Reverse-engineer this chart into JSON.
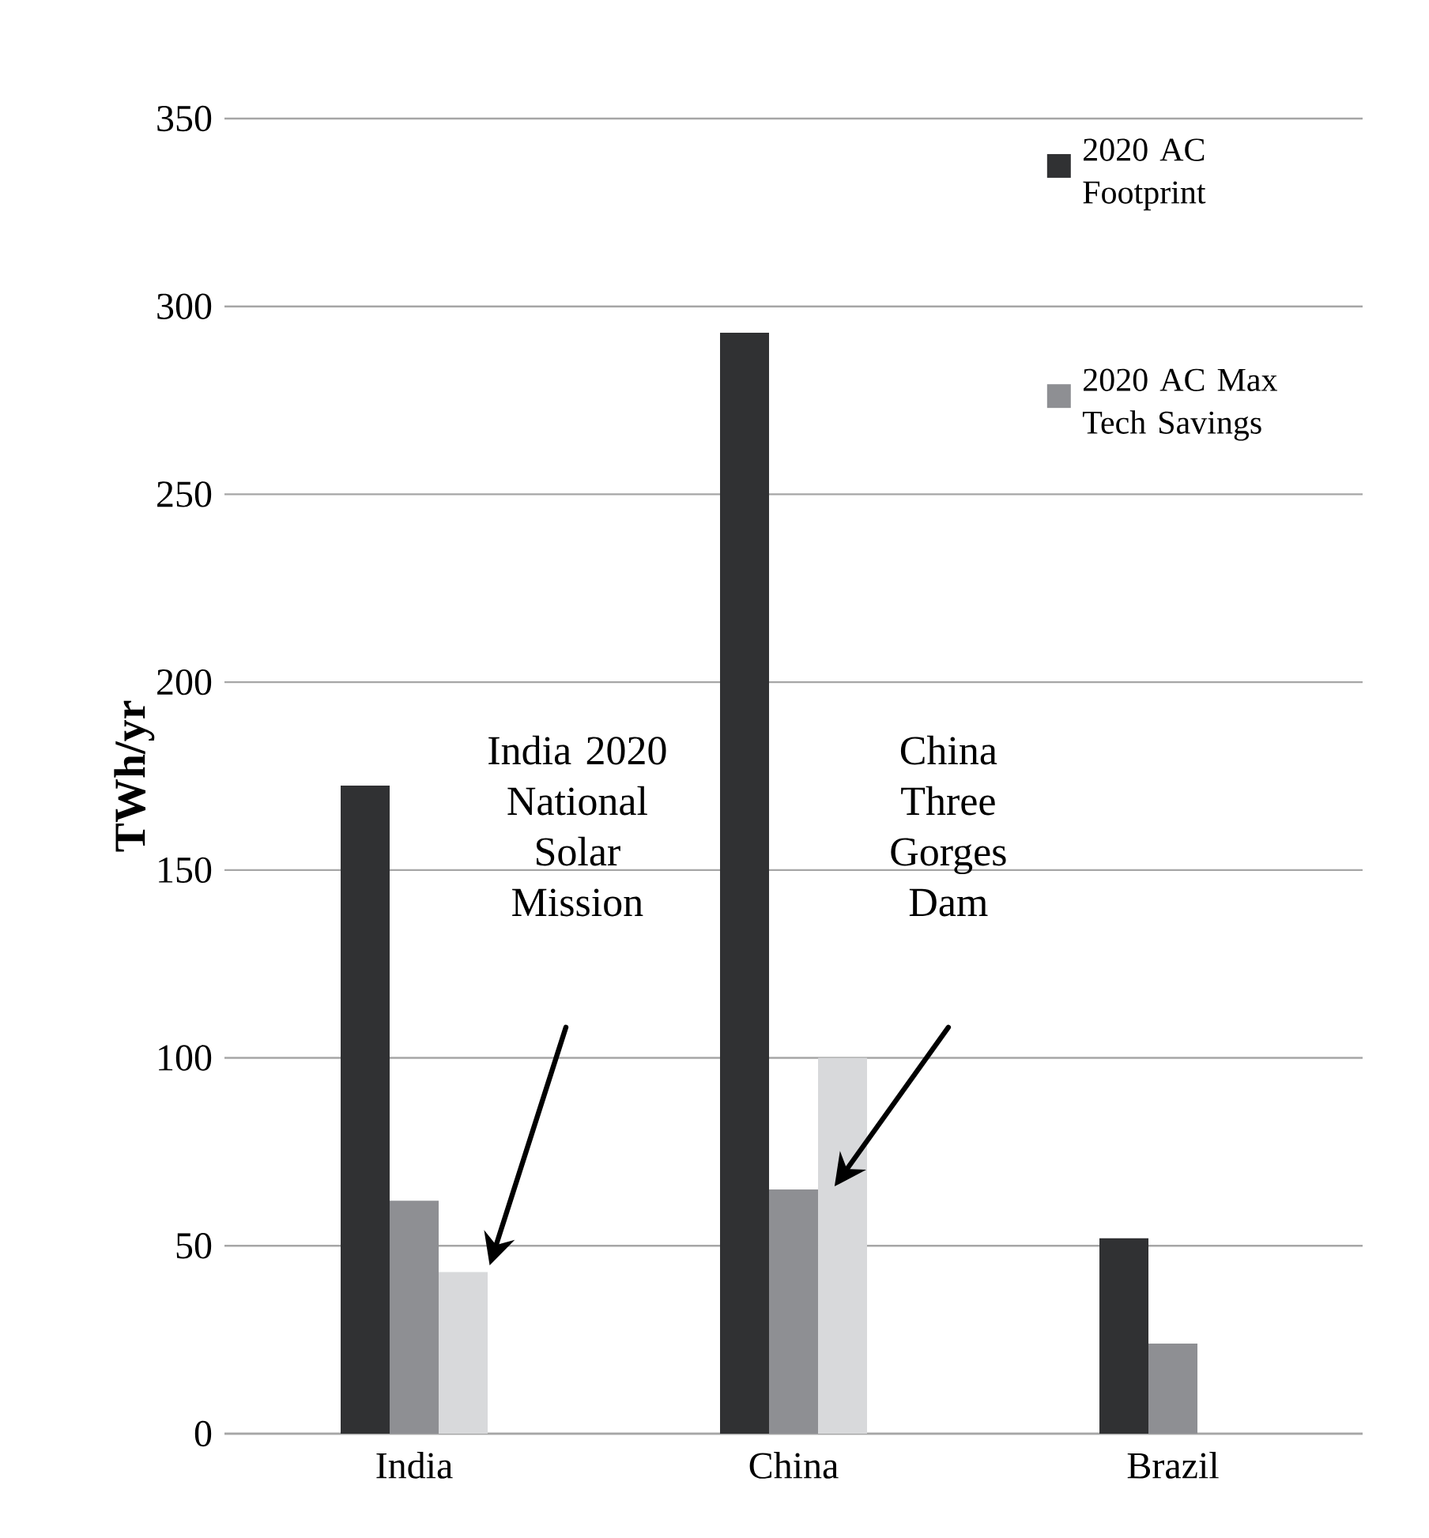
{
  "chart_data": {
    "type": "bar",
    "ylabel": "TWh/yr",
    "categories": [
      "India",
      "China",
      "Brazil"
    ],
    "series": [
      {
        "name": "2020 AC Footprint",
        "color": "#303133",
        "values": [
          172.5,
          293,
          52
        ]
      },
      {
        "name": "2020 AC Max Tech Savings",
        "color": "#8e8f93",
        "values": [
          62,
          65,
          24
        ]
      },
      {
        "color": "#d8d9db",
        "values": [
          43,
          100,
          null
        ]
      }
    ],
    "ylim": [
      0,
      350
    ],
    "yticks": [
      0,
      50,
      100,
      150,
      200,
      250,
      300,
      350
    ],
    "grid": "y",
    "legend": "top right",
    "annotations": [
      "India 2020 National Solar Mission",
      "China Three Gorges Dam"
    ]
  }
}
